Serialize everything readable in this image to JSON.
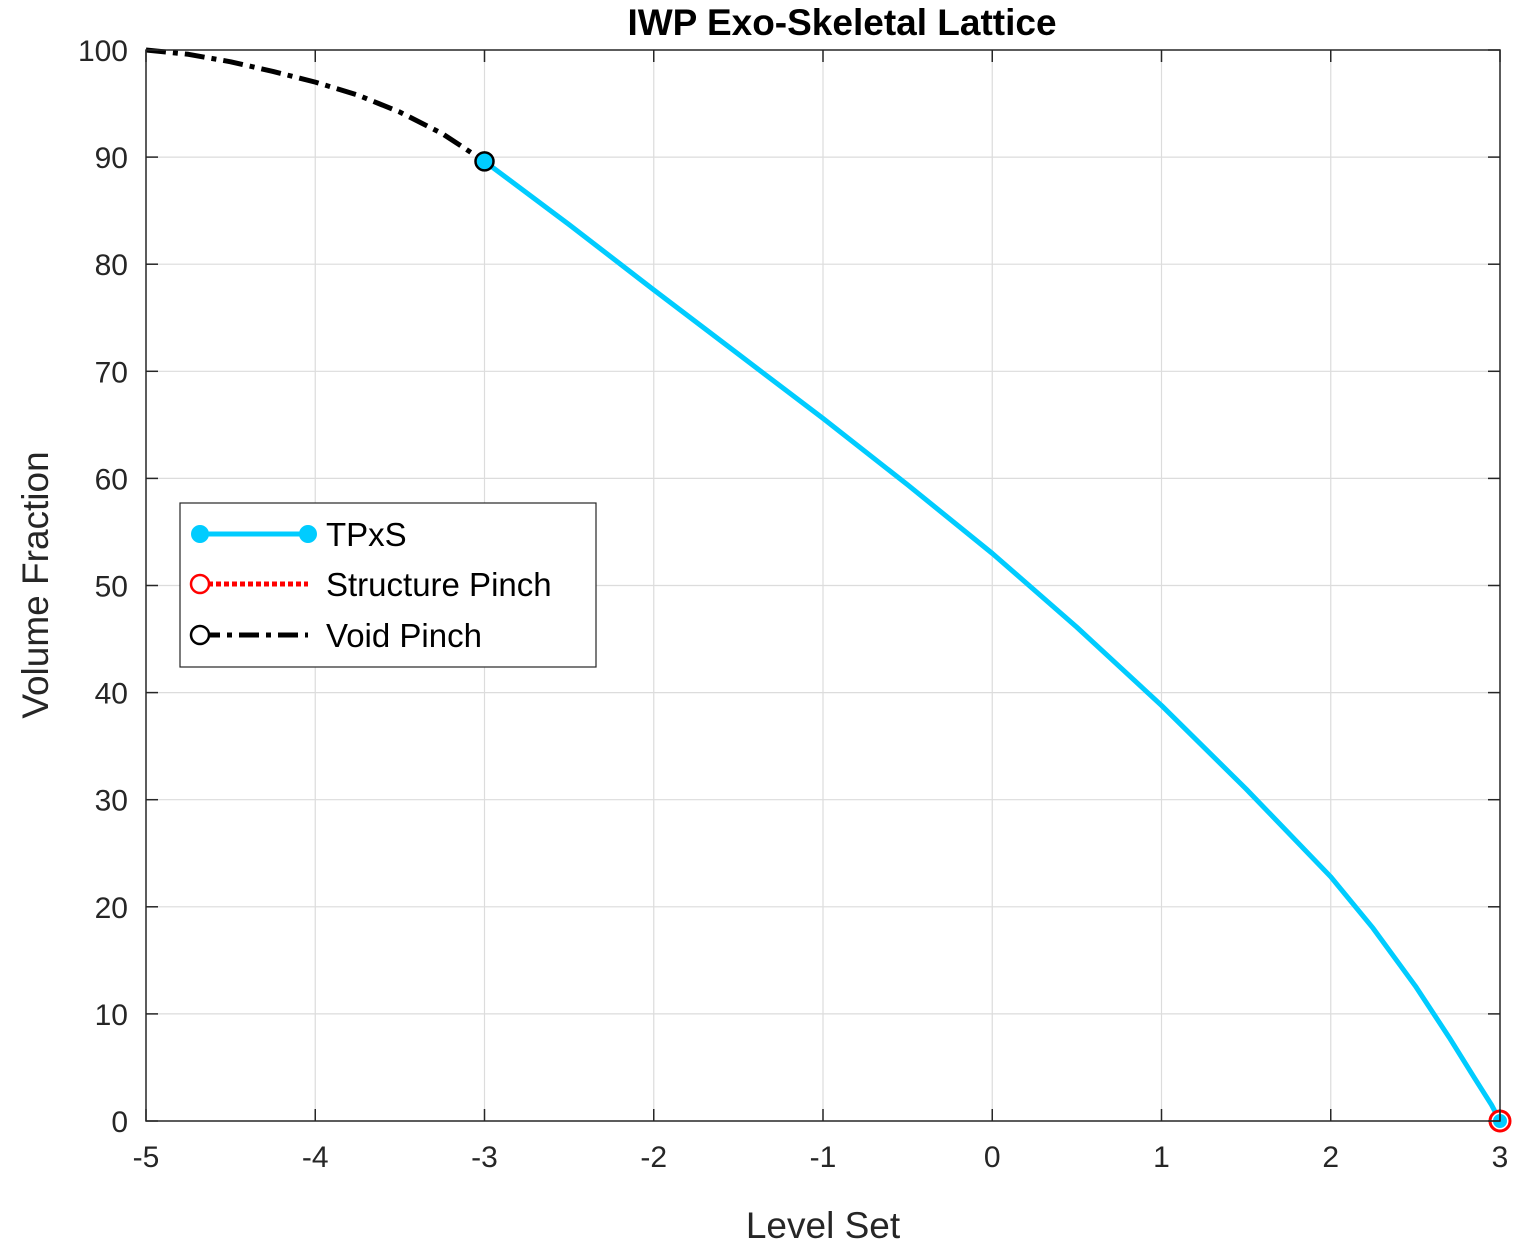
{
  "chart_data": {
    "type": "line",
    "title": "IWP Exo-Skeletal Lattice",
    "xlabel": "Level Set",
    "ylabel": "Volume Fraction",
    "xlim": [
      -5,
      3
    ],
    "ylim": [
      0,
      100
    ],
    "xticks": [
      -5,
      -4,
      -3,
      -2,
      -1,
      0,
      1,
      2,
      3
    ],
    "yticks": [
      0,
      10,
      20,
      30,
      40,
      50,
      60,
      70,
      80,
      90,
      100
    ],
    "grid": true,
    "legend_position": "center-left",
    "series": [
      {
        "name": "TPxS",
        "color": "#00CCFF",
        "line_style": "solid",
        "marker": "filled-circle",
        "points": [
          {
            "x": -3.0,
            "y": 89.6
          },
          {
            "x": -2.5,
            "y": 83.7
          },
          {
            "x": -2.0,
            "y": 77.6
          },
          {
            "x": -1.5,
            "y": 71.6
          },
          {
            "x": -1.0,
            "y": 65.6
          },
          {
            "x": -0.5,
            "y": 59.4
          },
          {
            "x": 0.0,
            "y": 53.0
          },
          {
            "x": 0.5,
            "y": 46.1
          },
          {
            "x": 1.0,
            "y": 38.8
          },
          {
            "x": 1.5,
            "y": 31.0
          },
          {
            "x": 2.0,
            "y": 22.8
          },
          {
            "x": 2.25,
            "y": 18.0
          },
          {
            "x": 2.5,
            "y": 12.6
          },
          {
            "x": 2.7,
            "y": 7.8
          },
          {
            "x": 2.85,
            "y": 4.0
          },
          {
            "x": 2.95,
            "y": 1.5
          },
          {
            "x": 3.0,
            "y": 0.0
          }
        ],
        "endpoint_markers": [
          {
            "x": -3.0,
            "y": 89.6
          },
          {
            "x": 3.0,
            "y": 0.0
          }
        ]
      },
      {
        "name": "Structure Pinch",
        "color": "#FF0000",
        "line_style": "dotted",
        "marker": "open-circle",
        "points": [
          {
            "x": 3.0,
            "y": 0.0
          }
        ]
      },
      {
        "name": "Void Pinch",
        "color": "#000000",
        "line_style": "dash-dot",
        "marker": "open-circle",
        "points": [
          {
            "x": -5.0,
            "y": 100.0
          },
          {
            "x": -4.75,
            "y": 99.6
          },
          {
            "x": -4.5,
            "y": 98.9
          },
          {
            "x": -4.25,
            "y": 98.0
          },
          {
            "x": -4.0,
            "y": 97.0
          },
          {
            "x": -3.75,
            "y": 95.8
          },
          {
            "x": -3.5,
            "y": 94.2
          },
          {
            "x": -3.25,
            "y": 92.2
          },
          {
            "x": -3.0,
            "y": 89.6
          }
        ]
      }
    ]
  }
}
